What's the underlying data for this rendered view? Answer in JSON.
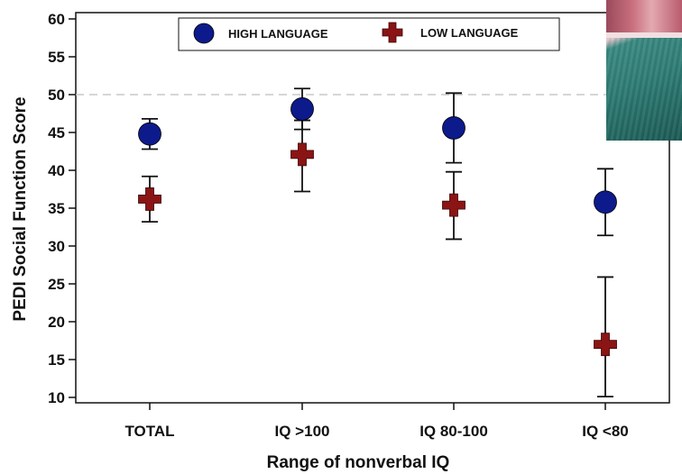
{
  "chart_data": {
    "type": "scatter",
    "ylabel": "PEDI Social Function Score",
    "xlabel": "Range of nonverbal IQ",
    "categories": [
      "TOTAL",
      "IQ >100",
      "IQ 80-100",
      "IQ <80"
    ],
    "ylim": [
      10,
      60
    ],
    "yticks": [
      10,
      15,
      20,
      25,
      30,
      35,
      40,
      45,
      50,
      55,
      60
    ],
    "reference_line": 50,
    "legend_position": "top-center",
    "series": [
      {
        "name": "HIGH LANGUAGE",
        "marker": "circle",
        "color": "#0d1a8c",
        "values": [
          44.8,
          48.1,
          45.6,
          35.8
        ],
        "error_low": [
          42.8,
          45.4,
          41.0,
          31.4
        ],
        "error_high": [
          46.8,
          50.8,
          50.2,
          40.2
        ]
      },
      {
        "name": "LOW LANGUAGE",
        "marker": "cross",
        "color": "#8b1414",
        "values": [
          36.2,
          42.1,
          35.4,
          17.0
        ],
        "error_low": [
          33.2,
          37.2,
          30.9,
          10.1
        ],
        "error_high": [
          39.2,
          46.6,
          39.8,
          25.9
        ]
      }
    ]
  }
}
